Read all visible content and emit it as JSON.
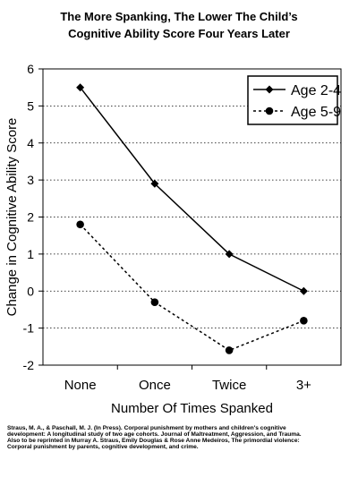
{
  "chart_data": {
    "type": "line",
    "title_lines": [
      "The More Spanking, The Lower The Child’s",
      "Cognitive Ability Score Four Years Later"
    ],
    "xlabel": "Number Of Times Spanked",
    "ylabel": "Change in Cognitive Ability Score",
    "categories": [
      "None",
      "Once",
      "Twice",
      "3+"
    ],
    "ylim": [
      -2,
      6
    ],
    "yticks": [
      -2,
      -1,
      0,
      1,
      2,
      3,
      4,
      5,
      6
    ],
    "grid": "horizontal dotted",
    "legend_position": "top-right",
    "series": [
      {
        "name": "Age 2-4",
        "values": [
          5.5,
          2.9,
          1.0,
          0.0
        ],
        "line": "solid",
        "marker": "diamond",
        "color": "#000000"
      },
      {
        "name": "Age 5-9",
        "values": [
          1.8,
          -0.3,
          -1.6,
          -0.8
        ],
        "line": "dashed",
        "marker": "circle",
        "color": "#000000"
      }
    ]
  },
  "citation_lines": [
    "Straus, M. A., & Paschall, M. J. (In Press). Corporal punishment by mothers and children's cognitive",
    "development: A longitudinal study of two age cohorts. Journal of Maltreatment, Aggression, and Trauma.",
    " Also to be reprinted in Murray A. Straus, Emily Douglas & Rose Anne Medeiros, The primordial violence:",
    "Corporal punishment by parents, cognitive development, and crime."
  ]
}
